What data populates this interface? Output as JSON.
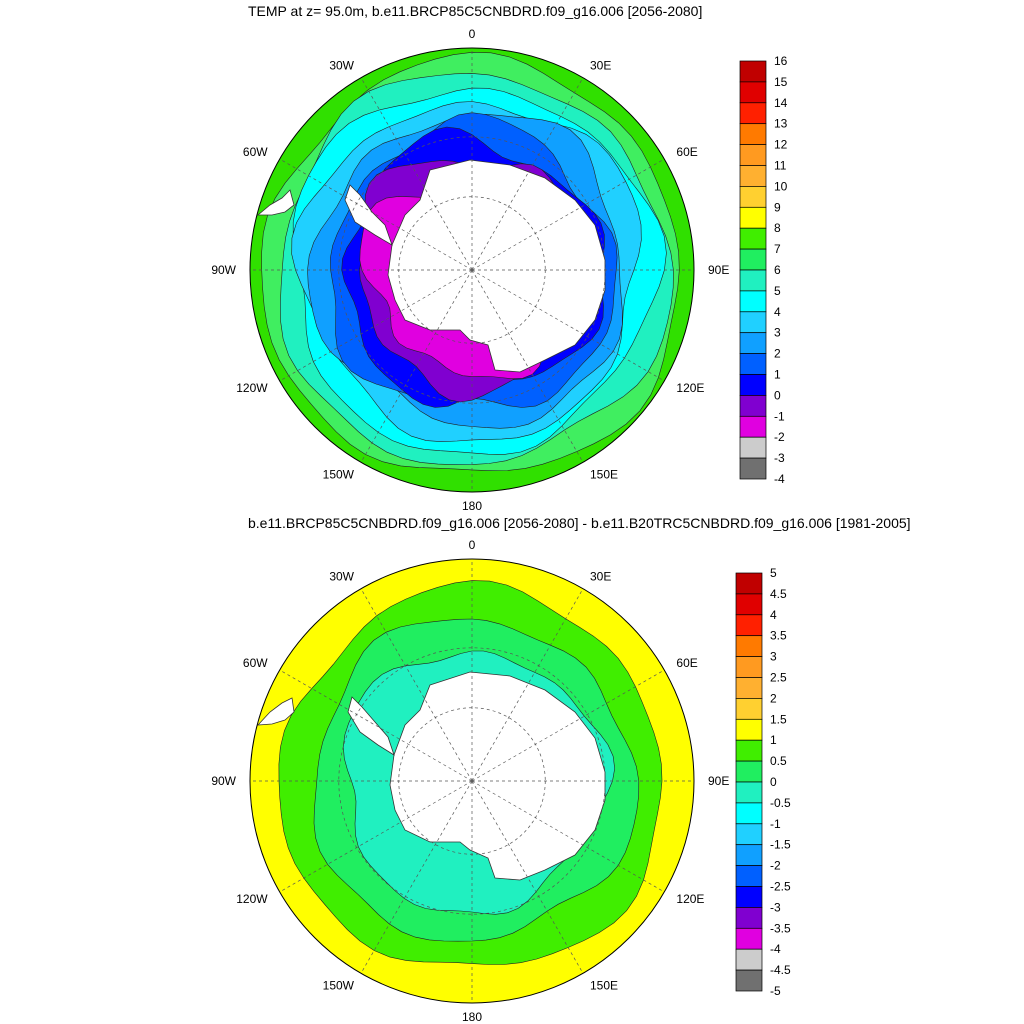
{
  "panel_top": {
    "title": "TEMP at z=  95.0m, b.e11.BRCP85C5CNBDRD.f09_g16.006 [2056-2080]",
    "lon_labels": [
      "0",
      "30E",
      "60E",
      "90E",
      "120E",
      "150E",
      "180",
      "150W",
      "120W",
      "90W",
      "60W",
      "30W"
    ],
    "colorbar": {
      "labels": [
        "16",
        "15",
        "14",
        "13",
        "12",
        "11",
        "10",
        "9",
        "8",
        "7",
        "6",
        "5",
        "4",
        "3",
        "2",
        "1",
        "0",
        "-1",
        "-2",
        "-3",
        "-4"
      ],
      "colors": [
        "#c00000",
        "#e00000",
        "#ff2000",
        "#ff7a00",
        "#ff9a20",
        "#ffb030",
        "#ffd030",
        "#ffff00",
        "#40ee00",
        "#20ee60",
        "#20f0c0",
        "#00ffff",
        "#20d0ff",
        "#10a0ff",
        "#0060ff",
        "#0000ff",
        "#8000d0",
        "#e000e0",
        "#cccccc",
        "#707070"
      ]
    },
    "rings_outer_to_inner": [
      "#30e000",
      "#40ee60",
      "#20f0c0",
      "#00ffff",
      "#20d0ff",
      "#10a0ff",
      "#0060ff",
      "#0000ff",
      "#8000d0",
      "#e000e0"
    ]
  },
  "panel_bottom": {
    "title": "b.e11.BRCP85C5CNBDRD.f09_g16.006 [2056-2080] - b.e11.B20TRC5CNBDRD.f09_g16.006 [1981-2005]",
    "lon_labels": [
      "0",
      "30E",
      "60E",
      "90E",
      "120E",
      "150E",
      "180",
      "150W",
      "120W",
      "90W",
      "60W",
      "30W"
    ],
    "colorbar": {
      "labels": [
        "5",
        "4.5",
        "4",
        "3.5",
        "3",
        "2.5",
        "2",
        "1.5",
        "1",
        "0.5",
        "0",
        "-0.5",
        "-1",
        "-1.5",
        "-2",
        "-2.5",
        "-3",
        "-3.5",
        "-4",
        "-4.5",
        "-5"
      ],
      "colors": [
        "#c00000",
        "#e00000",
        "#ff2000",
        "#ff7a00",
        "#ff9a20",
        "#ffb030",
        "#ffd030",
        "#ffff00",
        "#40ee00",
        "#20ee60",
        "#20f0c0",
        "#00ffff",
        "#20d0ff",
        "#10a0ff",
        "#0060ff",
        "#0000ff",
        "#8000d0",
        "#e000e0",
        "#cccccc",
        "#707070"
      ]
    },
    "rings_outer_to_inner": [
      "#ffff00",
      "#40ee00",
      "#20ee60",
      "#20f0c0"
    ]
  }
}
